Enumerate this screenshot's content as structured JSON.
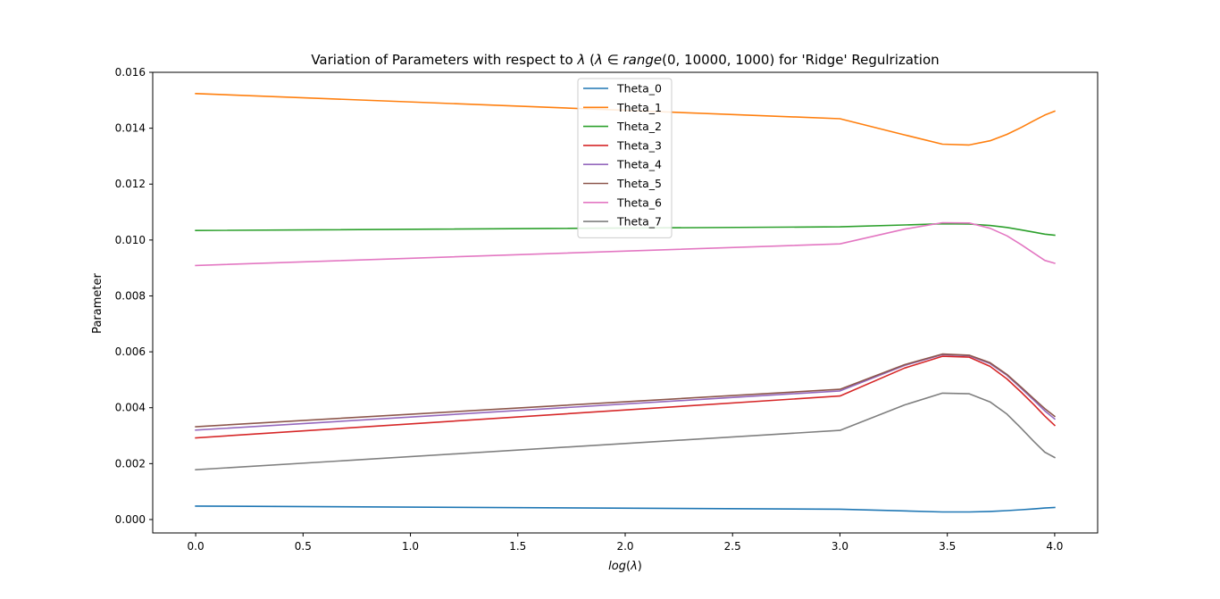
{
  "chart_data": {
    "type": "line",
    "title_parts": [
      "Variation of Parameters with respect to ",
      "λ",
      " (",
      "λ",
      " ∈ ",
      "range",
      "(0, 10000, 1000)",
      " for 'Ridge' Regulrization"
    ],
    "xlabel_parts": [
      "log",
      "(",
      "λ",
      ")"
    ],
    "ylabel": "Parameter",
    "xlim": [
      -0.2,
      4.2
    ],
    "ylim": [
      -0.00048,
      0.016
    ],
    "xticks": [
      0.0,
      0.5,
      1.0,
      1.5,
      2.0,
      2.5,
      3.0,
      3.5,
      4.0
    ],
    "xtick_labels": [
      "0.0",
      "0.5",
      "1.0",
      "1.5",
      "2.0",
      "2.5",
      "3.0",
      "3.5",
      "4.0"
    ],
    "yticks": [
      0.0,
      0.002,
      0.004,
      0.006,
      0.008,
      0.01,
      0.012,
      0.014,
      0.016
    ],
    "ytick_labels": [
      "0.000",
      "0.002",
      "0.004",
      "0.006",
      "0.008",
      "0.010",
      "0.012",
      "0.014",
      "0.016"
    ],
    "grid": false,
    "legend_position": "upper center",
    "x": [
      0.0,
      3.0,
      3.301,
      3.477,
      3.602,
      3.699,
      3.778,
      3.845,
      3.903,
      3.954,
      4.0
    ],
    "series": [
      {
        "name": "Theta_0",
        "color": "#1f77b4",
        "values": [
          0.00048,
          0.00037,
          0.00031,
          0.00027,
          0.00027,
          0.00029,
          0.00032,
          0.00035,
          0.00038,
          0.00041,
          0.00043
        ]
      },
      {
        "name": "Theta_1",
        "color": "#ff7f0e",
        "values": [
          0.01524,
          0.01434,
          0.01376,
          0.01343,
          0.0134,
          0.01355,
          0.01378,
          0.01403,
          0.01427,
          0.01447,
          0.01461
        ]
      },
      {
        "name": "Theta_2",
        "color": "#2ca02c",
        "values": [
          0.01034,
          0.01047,
          0.01054,
          0.01058,
          0.01057,
          0.01052,
          0.01045,
          0.01036,
          0.01028,
          0.01021,
          0.01017
        ]
      },
      {
        "name": "Theta_3",
        "color": "#d62728",
        "values": [
          0.00292,
          0.00442,
          0.00542,
          0.00584,
          0.00581,
          0.00548,
          0.00503,
          0.00455,
          0.00411,
          0.0037,
          0.00337
        ]
      },
      {
        "name": "Theta_4",
        "color": "#9467bd",
        "values": [
          0.0032,
          0.0046,
          0.00551,
          0.0059,
          0.00586,
          0.00558,
          0.00516,
          0.00469,
          0.00427,
          0.00389,
          0.0036
        ]
      },
      {
        "name": "Theta_5",
        "color": "#8c564b",
        "values": [
          0.00332,
          0.00466,
          0.00554,
          0.00592,
          0.00588,
          0.00561,
          0.00519,
          0.00473,
          0.00432,
          0.00397,
          0.00369
        ]
      },
      {
        "name": "Theta_6",
        "color": "#e377c2",
        "values": [
          0.00909,
          0.00986,
          0.01039,
          0.01062,
          0.01061,
          0.01042,
          0.01015,
          0.00983,
          0.00953,
          0.00927,
          0.00917
        ]
      },
      {
        "name": "Theta_7",
        "color": "#7f7f7f",
        "values": [
          0.00178,
          0.00319,
          0.0041,
          0.00452,
          0.0045,
          0.00421,
          0.00377,
          0.00326,
          0.00279,
          0.00241,
          0.00222
        ]
      }
    ]
  }
}
